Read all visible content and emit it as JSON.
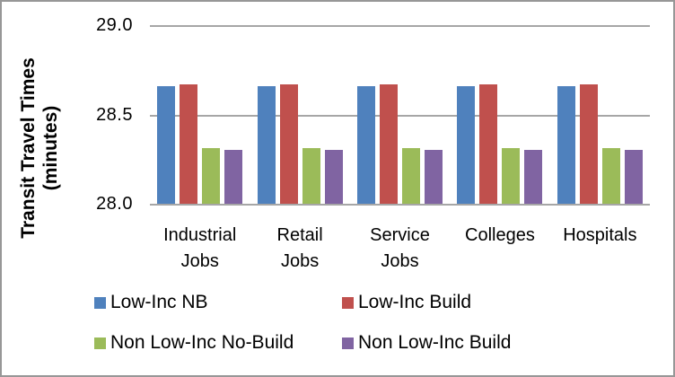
{
  "figure": {
    "background": "#FFFFFF",
    "border_color": "#979797"
  },
  "chart_data": {
    "type": "bar",
    "title": "",
    "ylabel": "Transit Travel Times (minutes)",
    "ylabel_lines": [
      "Transit Travel Times",
      "(minutes)"
    ],
    "xlabel": "",
    "categories": [
      "Industrial Jobs",
      "Retail Jobs",
      "Service Jobs",
      "Colleges",
      "Hospitals"
    ],
    "category_label_lines": [
      [
        "Industrial",
        "Jobs"
      ],
      [
        "Retail",
        "Jobs"
      ],
      [
        "Service",
        "Jobs"
      ],
      [
        "Colleges"
      ],
      [
        "Hospitals"
      ]
    ],
    "series": [
      {
        "name": "Low-Inc NB",
        "color": "#4F81BD",
        "values": [
          28.66,
          28.66,
          28.66,
          28.66,
          28.66
        ]
      },
      {
        "name": "Low-Inc Build",
        "color": "#C0504D",
        "values": [
          28.67,
          28.67,
          28.67,
          28.67,
          28.67
        ]
      },
      {
        "name": "Non Low-Inc No-Build",
        "color": "#9BBB59",
        "values": [
          28.31,
          28.31,
          28.31,
          28.31,
          28.31
        ]
      },
      {
        "name": "Non Low-Inc Build",
        "color": "#8064A2",
        "values": [
          28.3,
          28.3,
          28.3,
          28.3,
          28.3
        ]
      }
    ],
    "ylim": [
      28.0,
      29.0
    ],
    "yticks": [
      29.0,
      28.5,
      28.0
    ],
    "ytick_labels": [
      "29.0",
      "28.5",
      "28.0"
    ],
    "grid": true,
    "gridline_color": "#A6A6A6",
    "axis_line_color": "#A6A6A6",
    "legend_position": "bottom",
    "legend": [
      "Low-Inc NB",
      "Low-Inc Build",
      "Non Low-Inc No-Build",
      "Non Low-Inc Build"
    ]
  }
}
